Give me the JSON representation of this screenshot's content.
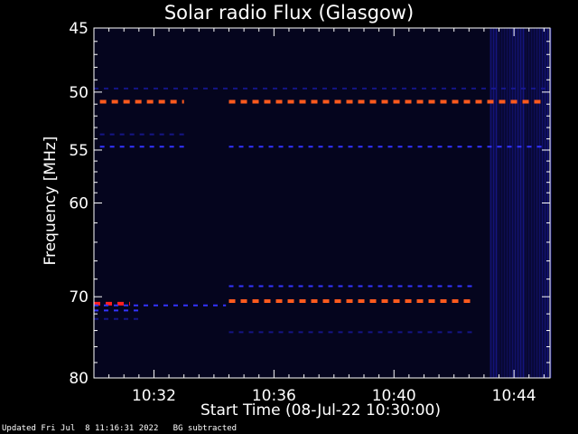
{
  "chart_data": {
    "type": "heatmap",
    "title": "Solar radio Flux (Glasgow)",
    "ylabel": "Frequency [MHz]",
    "xlabel": "Start Time (08-Jul-22 10:30:00)",
    "x_range_minutes": [
      0,
      15.2
    ],
    "y_range_mhz": [
      45,
      80
    ],
    "y_scale": "log",
    "y_ticks": [
      {
        "value": 45,
        "label": "45"
      },
      {
        "value": 50,
        "label": "50"
      },
      {
        "value": 55,
        "label": "55"
      },
      {
        "value": 60,
        "label": "60"
      },
      {
        "value": 70,
        "label": "70"
      },
      {
        "value": 80,
        "label": "80"
      }
    ],
    "x_ticks": [
      {
        "value": 2,
        "label": "10:32"
      },
      {
        "value": 6,
        "label": "10:36"
      },
      {
        "value": 10,
        "label": "10:40"
      },
      {
        "value": 14,
        "label": "10:44"
      }
    ],
    "colors": {
      "background": "#05051e",
      "dim": "#1a1aa0",
      "mid": "#3333ff",
      "hot": "#ff5a1e",
      "hot2": "#ff2020"
    },
    "bands": [
      {
        "freq": 50.8,
        "x0": 0.2,
        "x1": 3.0,
        "level": "hot"
      },
      {
        "freq": 50.8,
        "x0": 4.5,
        "x1": 15.0,
        "level": "hot"
      },
      {
        "freq": 49.7,
        "x0": 0.0,
        "x1": 15.2,
        "level": "dim"
      },
      {
        "freq": 53.6,
        "x0": 0.2,
        "x1": 3.0,
        "level": "dim"
      },
      {
        "freq": 54.7,
        "x0": 0.2,
        "x1": 3.0,
        "level": "mid"
      },
      {
        "freq": 54.7,
        "x0": 4.5,
        "x1": 15.0,
        "level": "mid"
      },
      {
        "freq": 68.8,
        "x0": 4.5,
        "x1": 12.6,
        "level": "mid"
      },
      {
        "freq": 70.5,
        "x0": 4.5,
        "x1": 12.6,
        "level": "hot"
      },
      {
        "freq": 70.8,
        "x0": 0.0,
        "x1": 1.2,
        "level": "hot2"
      },
      {
        "freq": 71.0,
        "x0": 0.0,
        "x1": 4.4,
        "level": "mid"
      },
      {
        "freq": 71.6,
        "x0": 0.0,
        "x1": 1.5,
        "level": "mid"
      },
      {
        "freq": 72.6,
        "x0": 0.0,
        "x1": 1.5,
        "level": "dim"
      },
      {
        "freq": 74.2,
        "x0": 4.5,
        "x1": 12.6,
        "level": "dim"
      }
    ],
    "bursts": [
      {
        "x0": 13.2,
        "x1": 15.2,
        "level": "dim"
      }
    ]
  },
  "footer": "Updated Fri Jul  8 11:16:31 2022   BG subtracted"
}
